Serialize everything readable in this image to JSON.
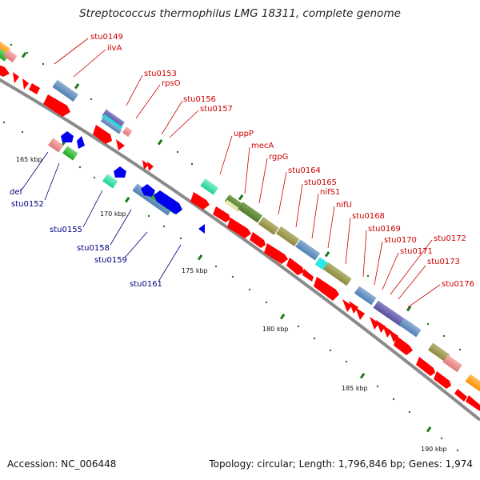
{
  "title": "Streptococcus thermophilus LMG 18311, complete genome",
  "footer": {
    "accession": "Accession: NC_006448",
    "topology": "Topology: circular; Length: 1,796,846 bp; Genes: 1,974"
  },
  "colors": {
    "backbone": "#8a8a8a",
    "forward_cds": "#ff0000",
    "reverse_cds": "#0000ee",
    "label_forward": "#cc0000",
    "label_reverse": "#00007f",
    "tick": "#1a7a1a"
  },
  "scale_labels": [
    "165 kbp",
    "170 kbp",
    "175 kbp",
    "180 kbp",
    "185 kbp",
    "190 kbp"
  ],
  "forward_gene_labels": [
    "stu0149",
    "ilvA",
    "stu0153",
    "rpsO",
    "stu0156",
    "stu0157",
    "uppP",
    "mecA",
    "rgpG",
    "stu0164",
    "stu0165",
    "nifS1",
    "nifU",
    "stu0168",
    "stu0169",
    "stu0170",
    "stu0171",
    "stu0172",
    "stu0173",
    "stu0176"
  ],
  "reverse_gene_labels": [
    "def",
    "stu0152",
    "stu0155",
    "stu0158",
    "stu0159",
    "stu0161"
  ]
}
